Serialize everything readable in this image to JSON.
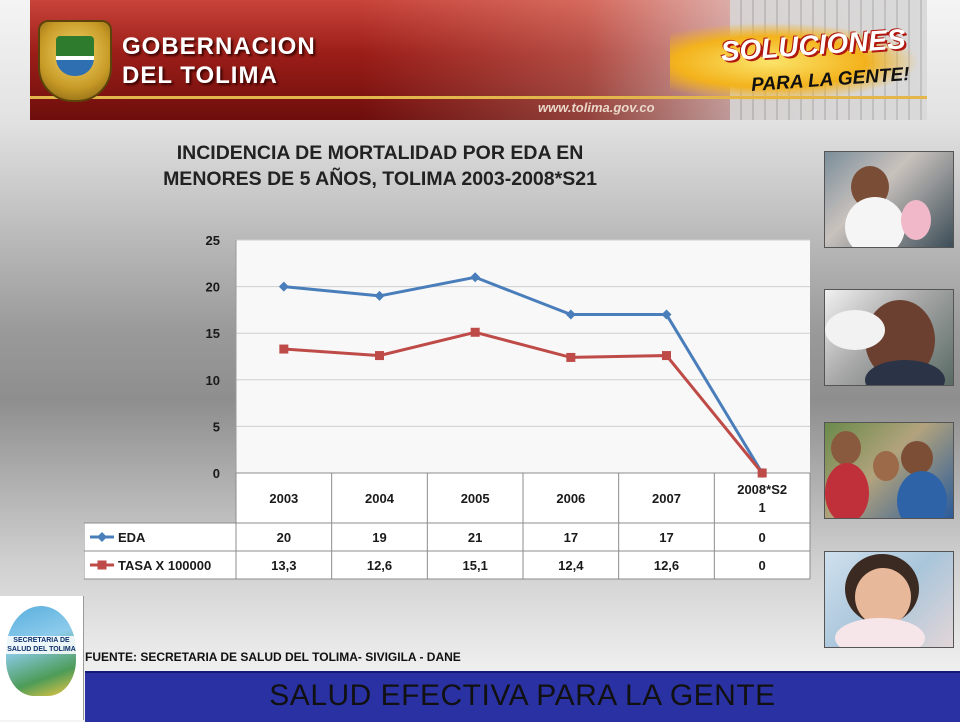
{
  "header": {
    "title_line1": "GOBERNACION",
    "title_line2": "DEL TOLIMA",
    "slogan_top": "SOLUCIONES",
    "slogan_bottom": "PARA LA GENTE!",
    "url": "www.tolima.gov.co"
  },
  "chart_title": {
    "line1": "INCIDENCIA DE MORTALIDAD POR EDA EN",
    "line2": "MENORES DE 5 AÑOS, TOLIMA 2003-2008*S21"
  },
  "chart_data": {
    "type": "line",
    "categories": [
      "2003",
      "2004",
      "2005",
      "2006",
      "2007",
      "2008*S21"
    ],
    "category_lines": [
      [
        "2003"
      ],
      [
        "2004"
      ],
      [
        "2005"
      ],
      [
        "2006"
      ],
      [
        "2007"
      ],
      [
        "2008*S2",
        "1"
      ]
    ],
    "series": [
      {
        "name": "EDA",
        "values": [
          20,
          19,
          21,
          17,
          17,
          0
        ],
        "labels": [
          "20",
          "19",
          "21",
          "17",
          "17",
          "0"
        ],
        "color": "#4a7ebb",
        "marker": "diamond"
      },
      {
        "name": "TASA X 100000",
        "values": [
          13.3,
          12.6,
          15.1,
          12.4,
          12.6,
          0
        ],
        "labels": [
          "13,3",
          "12,6",
          "15,1",
          "12,4",
          "12,6",
          "0"
        ],
        "color": "#be4b48",
        "marker": "square"
      }
    ],
    "ylim": [
      0,
      25
    ],
    "yticks": [
      "0",
      "5",
      "10",
      "15",
      "20",
      "25"
    ],
    "grid": true,
    "legend": "data-table",
    "xlabel": "",
    "ylabel": ""
  },
  "source_text": "FUENTE: SECRETARIA DE SALUD DEL TOLIMA- SIVIGILA - DANE",
  "footer_text": "SALUD EFECTIVA PARA LA GENTE",
  "logo_text": "SECRETARIA DE SALUD DEL TOLIMA"
}
